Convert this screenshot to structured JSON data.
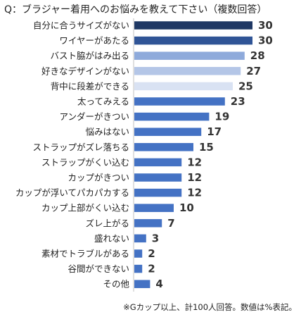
{
  "title": "Q：ブラジャー着用へのお悩みを教えて下さい（複数回答）",
  "footnote": "※Gカップ以上、計100人回答。数値は%表記。",
  "chart_data": {
    "type": "bar",
    "orientation": "horizontal",
    "categories": [
      "自分に合うサイズがない",
      "ワイヤーがあたる",
      "バスト脇がはみ出る",
      "好きなデザインがない",
      "背中に段差ができる",
      "太ってみえる",
      "アンダーがきつい",
      "悩みはない",
      "ストラップがズレ落ちる",
      "ストラップがくい込む",
      "カップがきつい",
      "カップが浮いてパカパカする",
      "カップ上部がくい込む",
      "ズレ上がる",
      "盛れない",
      "素材でトラブルがある",
      "谷間ができない",
      "その他"
    ],
    "values": [
      30,
      30,
      28,
      27,
      25,
      23,
      19,
      17,
      15,
      12,
      12,
      12,
      10,
      7,
      3,
      2,
      2,
      4
    ],
    "colors": [
      "#1f3864",
      "#2f5496",
      "#8eaadb",
      "#b4c6e7",
      "#d9e2f3",
      "#4472c4",
      "#4472c4",
      "#4472c4",
      "#4472c4",
      "#4472c4",
      "#4472c4",
      "#4472c4",
      "#4472c4",
      "#4472c4",
      "#4472c4",
      "#4472c4",
      "#4472c4",
      "#4472c4"
    ],
    "axis_color": "#bfbfbf"
  }
}
